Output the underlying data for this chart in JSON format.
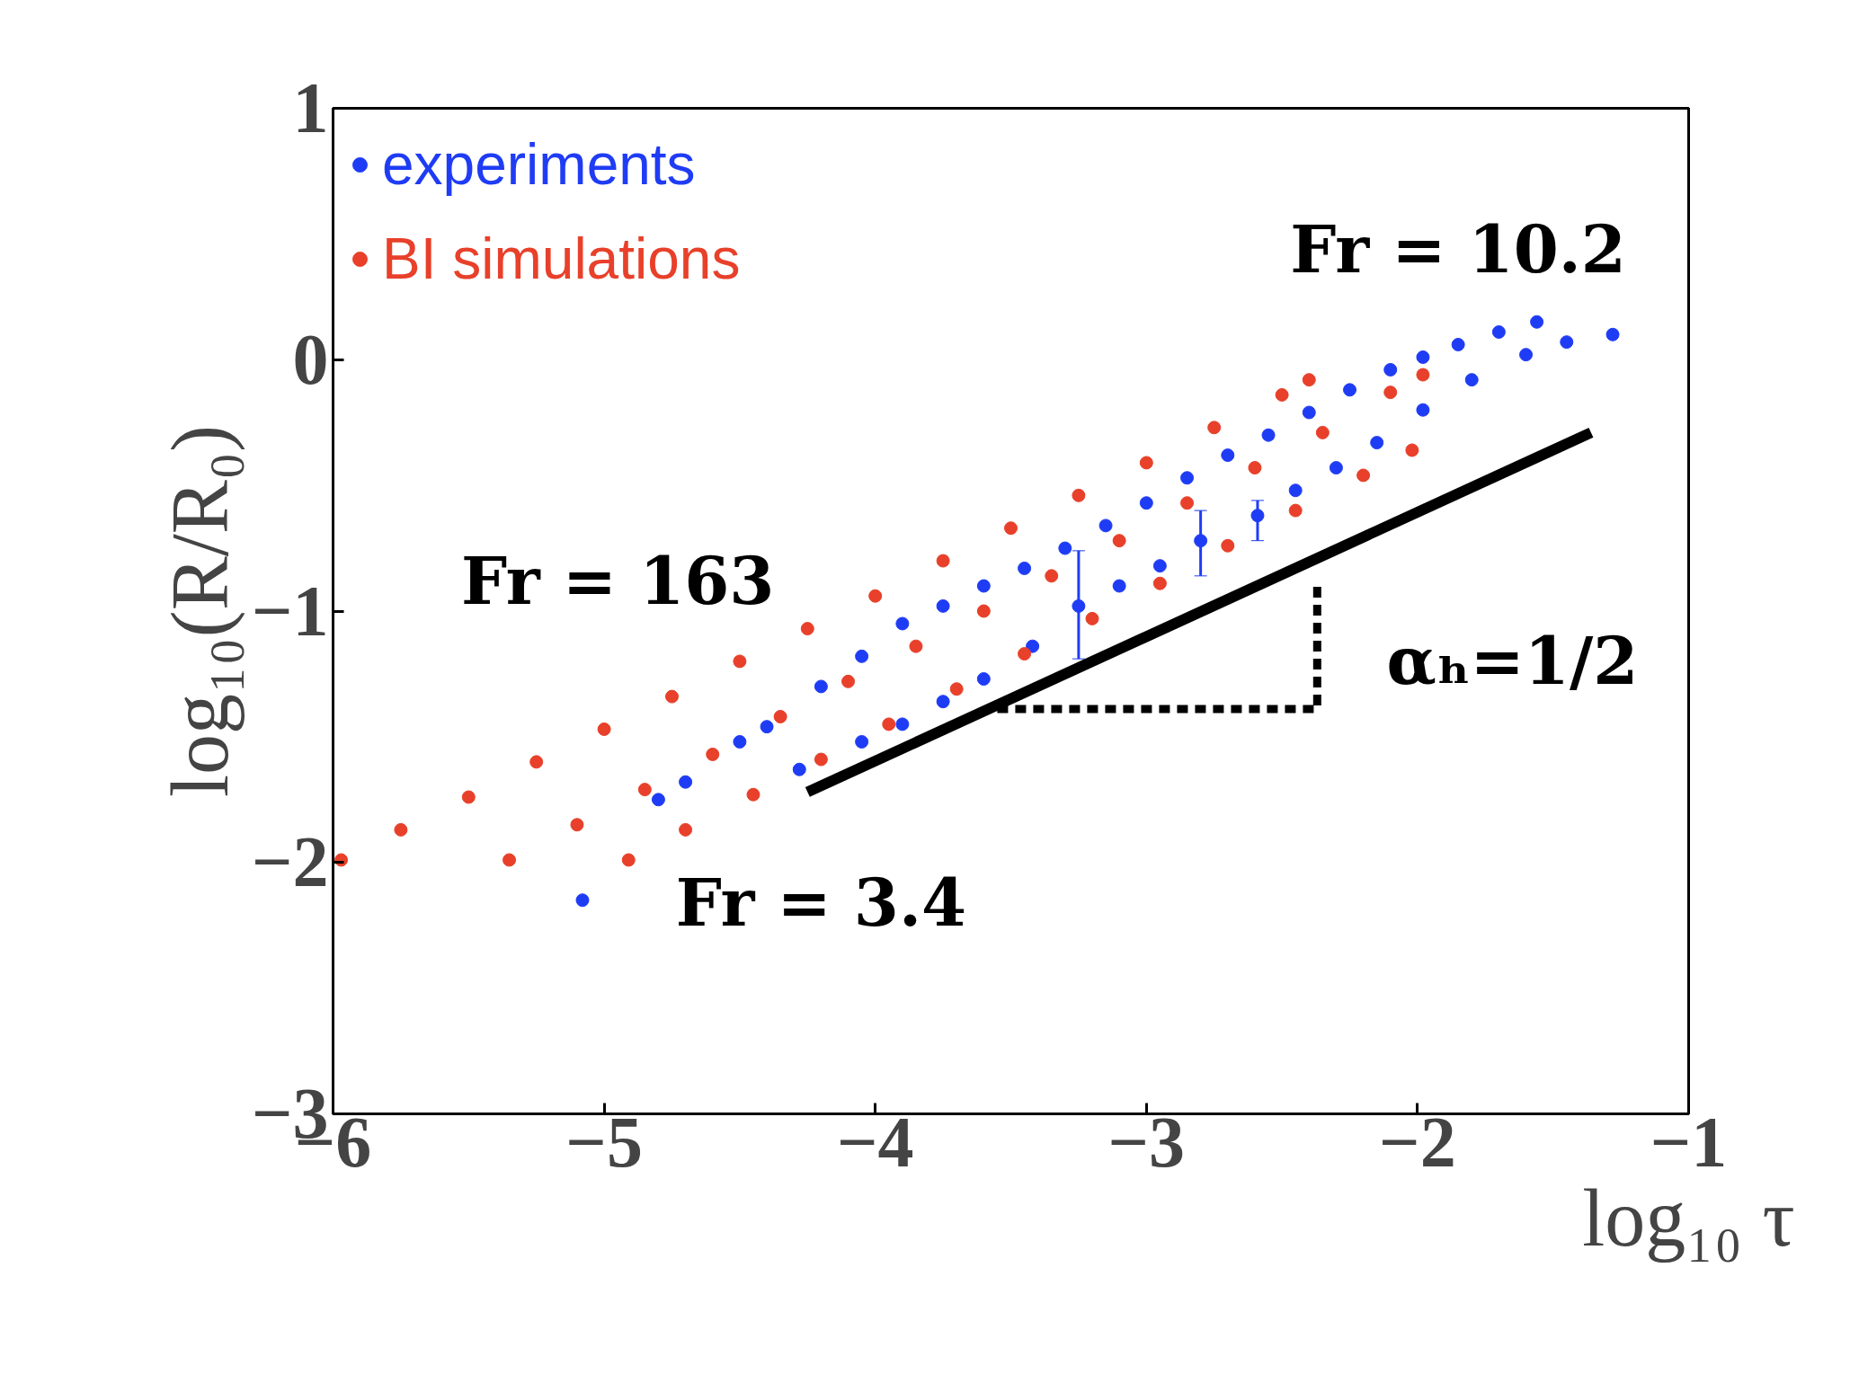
{
  "chart_data": {
    "type": "scatter",
    "xlabel": "log₁₀ τ",
    "ylabel": "log₁₀(R/R₀)",
    "xlim": [
      -6,
      -1
    ],
    "xticks": [
      -6,
      -5,
      -4,
      -3,
      -2,
      -1
    ],
    "ylim": [
      -3,
      1
    ],
    "yticks": [
      -3,
      -2,
      -1,
      0,
      1
    ],
    "grid": false,
    "legend": "top left",
    "series": [
      {
        "name": "experiments",
        "color": "#1f3cf5",
        "x": [
          -4.8,
          -4.7,
          -4.5,
          -4.4,
          -4.2,
          -4.05,
          -3.9,
          -3.75,
          -3.6,
          -3.45,
          -3.3,
          -3.15,
          -3.0,
          -2.85,
          -2.7,
          -2.55,
          -2.4,
          -2.25,
          -2.1,
          -1.98,
          -1.85,
          -1.7,
          -1.56
        ],
        "values": [
          -1.75,
          -1.68,
          -1.52,
          -1.46,
          -1.3,
          -1.18,
          -1.05,
          -0.98,
          -0.9,
          -0.83,
          -0.75,
          -0.66,
          -0.57,
          -0.47,
          -0.38,
          -0.3,
          -0.21,
          -0.12,
          -0.04,
          0.01,
          0.06,
          0.11,
          0.15
        ],
        "errors": [
          null,
          null,
          null,
          null,
          null,
          null,
          null,
          null,
          null,
          null,
          null,
          null,
          null,
          null,
          null,
          null,
          null,
          null,
          null,
          null,
          null,
          null,
          null
        ]
      },
      {
        "color": "#1f3cf5",
        "x": [
          -5.08,
          -4.28,
          -4.05,
          -3.9,
          -3.75,
          -3.6,
          -3.42,
          -3.25,
          -3.1,
          -2.95,
          -2.8,
          -2.59,
          -2.45,
          -2.3,
          -2.15,
          -1.98,
          -1.8,
          -1.6,
          -1.45,
          -1.28
        ],
        "values": [
          -2.15,
          -1.63,
          -1.52,
          -1.45,
          -1.36,
          -1.27,
          -1.14,
          -0.98,
          -0.9,
          -0.82,
          -0.72,
          -0.62,
          -0.52,
          -0.43,
          -0.33,
          -0.2,
          -0.08,
          0.02,
          0.07,
          0.1
        ],
        "errors": [
          null,
          null,
          null,
          null,
          null,
          null,
          null,
          [
            -1.19,
            -0.76
          ],
          null,
          null,
          [
            -0.86,
            -0.6
          ],
          [
            -0.72,
            -0.56
          ],
          null,
          null,
          null,
          null,
          null,
          null,
          null,
          null
        ]
      },
      {
        "name": "BI simulations",
        "color": "#e8402a",
        "x": [
          -5.97,
          -5.75,
          -5.5,
          -5.25,
          -5.0,
          -4.75,
          -4.5,
          -4.25,
          -4.0,
          -3.75,
          -3.5,
          -3.25,
          -3.0,
          -2.75,
          -2.5,
          -2.4
        ],
        "values": [
          -1.99,
          -1.87,
          -1.74,
          -1.6,
          -1.47,
          -1.34,
          -1.2,
          -1.07,
          -0.94,
          -0.8,
          -0.67,
          -0.54,
          -0.41,
          -0.27,
          -0.14,
          -0.08
        ]
      },
      {
        "color": "#e8402a",
        "x": [
          -5.35,
          -5.1,
          -4.85,
          -4.6,
          -4.35,
          -4.1,
          -3.85,
          -3.6,
          -3.35,
          -3.1,
          -2.85,
          -2.6,
          -2.35,
          -2.1,
          -1.98
        ],
        "values": [
          -1.99,
          -1.85,
          -1.71,
          -1.57,
          -1.42,
          -1.28,
          -1.14,
          -1.0,
          -0.86,
          -0.72,
          -0.57,
          -0.43,
          -0.29,
          -0.13,
          -0.06
        ]
      },
      {
        "color": "#e8402a",
        "x": [
          -4.91,
          -4.7,
          -4.45,
          -4.2,
          -3.95,
          -3.7,
          -3.45,
          -3.2,
          -2.95,
          -2.7,
          -2.45,
          -2.2,
          -2.02
        ],
        "values": [
          -1.99,
          -1.87,
          -1.73,
          -1.59,
          -1.45,
          -1.31,
          -1.17,
          -1.03,
          -0.89,
          -0.74,
          -0.6,
          -0.46,
          -0.36
        ]
      },
      {
        "type": "line",
        "color": "#000000",
        "line_style": "solid",
        "marker": "none",
        "x": [
          -4.25,
          -1.36
        ],
        "values": [
          -1.72,
          -0.29
        ]
      },
      {
        "type": "line",
        "color": "#000000",
        "line_style": "dashed",
        "marker": "none",
        "x": [
          -3.55,
          -2.37,
          -2.37
        ],
        "values": [
          -1.39,
          -1.39,
          -0.88
        ]
      }
    ],
    "annotations": [
      "Fr = 10.2",
      "Fr = 163",
      "Fr = 3.4",
      "αₕ=1/2"
    ]
  }
}
